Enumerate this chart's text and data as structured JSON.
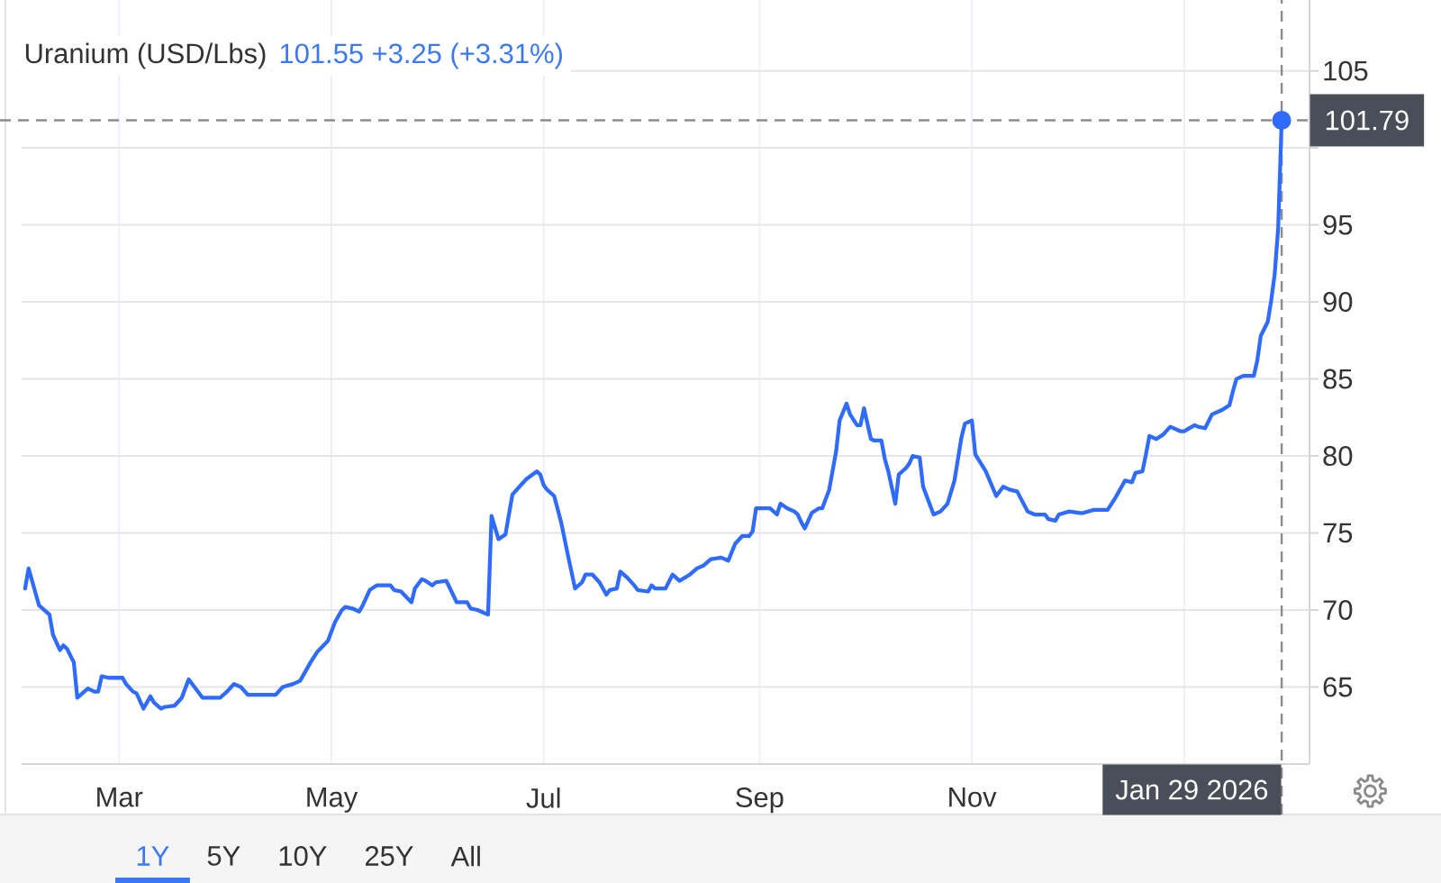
{
  "chart_data": {
    "type": "line",
    "title": "Uranium (USD/Lbs)",
    "subtitle": "101.55 +3.25 (+3.31%)",
    "xlim": [
      "2025-02-01",
      "2026-02-06"
    ],
    "xticks": [
      {
        "value": "2025-03-01",
        "label": "Mar"
      },
      {
        "value": "2025-05-01",
        "label": "May"
      },
      {
        "value": "2025-07-01",
        "label": "Jul"
      },
      {
        "value": "2025-09-01",
        "label": "Sep"
      },
      {
        "value": "2025-11-01",
        "label": "Nov"
      },
      {
        "value": "2026-01-01",
        "label": null
      }
    ],
    "ylim": [
      60,
      109.6
    ],
    "yticks": [
      65,
      70,
      75,
      80,
      85,
      90,
      95,
      {
        "value": 100,
        "label": null
      },
      105
    ],
    "grid": true,
    "series": [
      {
        "color": "#2f6bff",
        "x": [
          "2025-02-02",
          "2025-02-03",
          "2025-02-05",
          "2025-02-06",
          "2025-02-09",
          "2025-02-10",
          "2025-02-12",
          "2025-02-13",
          "2025-02-14",
          "2025-02-16",
          "2025-02-17",
          "2025-02-19",
          "2025-02-20",
          "2025-02-22",
          "2025-02-23",
          "2025-02-24",
          "2025-02-26",
          "2025-03-02",
          "2025-03-03",
          "2025-03-05",
          "2025-03-06",
          "2025-03-08",
          "2025-03-10",
          "2025-03-11",
          "2025-03-13",
          "2025-03-14",
          "2025-03-17",
          "2025-03-19",
          "2025-03-21",
          "2025-03-23",
          "2025-03-25",
          "2025-03-30",
          "2025-04-01",
          "2025-04-03",
          "2025-04-05",
          "2025-04-07",
          "2025-04-15",
          "2025-04-17",
          "2025-04-20",
          "2025-04-22",
          "2025-04-23",
          "2025-04-25",
          "2025-04-27",
          "2025-04-30",
          "2025-05-02",
          "2025-05-04",
          "2025-05-05",
          "2025-05-07",
          "2025-05-09",
          "2025-05-10",
          "2025-05-12",
          "2025-05-14",
          "2025-05-18",
          "2025-05-19",
          "2025-05-21",
          "2025-05-24",
          "2025-05-25",
          "2025-05-27",
          "2025-05-28",
          "2025-05-30",
          "2025-05-31",
          "2025-06-03",
          "2025-06-06",
          "2025-06-09",
          "2025-06-10",
          "2025-06-12",
          "2025-06-14",
          "2025-06-15",
          "2025-06-16",
          "2025-06-18",
          "2025-06-20",
          "2025-06-21",
          "2025-06-22",
          "2025-06-24",
          "2025-06-26",
          "2025-06-29",
          "2025-06-30",
          "2025-07-01",
          "2025-07-02",
          "2025-07-04",
          "2025-07-06",
          "2025-07-08",
          "2025-07-10",
          "2025-07-12",
          "2025-07-13",
          "2025-07-15",
          "2025-07-17",
          "2025-07-19",
          "2025-07-20",
          "2025-07-22",
          "2025-07-23",
          "2025-07-25",
          "2025-07-27",
          "2025-07-28",
          "2025-07-31",
          "2025-08-01",
          "2025-08-02",
          "2025-08-05",
          "2025-08-07",
          "2025-08-09",
          "2025-08-12",
          "2025-08-14",
          "2025-08-16",
          "2025-08-18",
          "2025-08-21",
          "2025-08-23",
          "2025-08-25",
          "2025-08-27",
          "2025-08-29",
          "2025-08-30",
          "2025-08-31",
          "2025-09-04",
          "2025-09-06",
          "2025-09-07",
          "2025-09-09",
          "2025-09-11",
          "2025-09-12",
          "2025-09-13",
          "2025-09-14",
          "2025-09-16",
          "2025-09-18",
          "2025-09-19",
          "2025-09-21",
          "2025-09-23",
          "2025-09-24",
          "2025-09-26",
          "2025-09-27",
          "2025-09-29",
          "2025-09-30",
          "2025-10-01",
          "2025-10-03",
          "2025-10-04",
          "2025-10-06",
          "2025-10-07",
          "2025-10-08",
          "2025-10-10",
          "2025-10-11",
          "2025-10-13",
          "2025-10-14",
          "2025-10-15",
          "2025-10-17",
          "2025-10-18",
          "2025-10-20",
          "2025-10-21",
          "2025-10-23",
          "2025-10-25",
          "2025-10-27",
          "2025-10-29",
          "2025-10-30",
          "2025-11-01",
          "2025-11-02",
          "2025-11-05",
          "2025-11-08",
          "2025-11-10",
          "2025-11-12",
          "2025-11-14",
          "2025-11-17",
          "2025-11-19",
          "2025-11-20",
          "2025-11-22",
          "2025-11-23",
          "2025-11-25",
          "2025-11-26",
          "2025-11-29",
          "2025-12-02",
          "2025-12-03",
          "2025-12-06",
          "2025-12-10",
          "2025-12-12",
          "2025-12-15",
          "2025-12-17",
          "2025-12-18",
          "2025-12-20",
          "2025-12-21",
          "2025-12-22",
          "2025-12-24",
          "2025-12-26",
          "2025-12-28",
          "2025-12-31",
          "2026-01-01",
          "2026-01-04",
          "2026-01-05",
          "2026-01-07",
          "2026-01-09",
          "2026-01-12",
          "2026-01-14",
          "2026-01-15",
          "2026-01-16",
          "2026-01-18",
          "2026-01-21",
          "2026-01-22",
          "2026-01-23",
          "2026-01-25",
          "2026-01-26",
          "2026-01-27",
          "2026-01-28",
          "2026-01-29"
        ],
        "values": [
          71.4,
          72.7,
          71.1,
          70.3,
          69.7,
          68.4,
          67.4,
          67.7,
          67.5,
          66.6,
          64.3,
          64.7,
          64.9,
          64.7,
          64.7,
          65.7,
          65.6,
          65.6,
          65.2,
          64.7,
          64.6,
          63.6,
          64.4,
          64.0,
          63.6,
          63.7,
          63.8,
          64.3,
          65.5,
          64.9,
          64.3,
          64.3,
          64.7,
          65.2,
          65.0,
          64.5,
          64.5,
          65.0,
          65.2,
          65.4,
          65.8,
          66.6,
          67.3,
          68.0,
          69.2,
          70.0,
          70.2,
          70.1,
          69.9,
          70.3,
          71.3,
          71.6,
          71.6,
          71.3,
          71.2,
          70.5,
          71.4,
          72.0,
          71.9,
          71.6,
          71.8,
          71.9,
          70.5,
          70.5,
          70.1,
          70.0,
          69.8,
          69.7,
          76.1,
          74.6,
          74.9,
          76.2,
          77.5,
          78.0,
          78.5,
          79.0,
          78.8,
          78.1,
          77.8,
          77.4,
          75.7,
          73.5,
          71.4,
          71.8,
          72.3,
          72.3,
          71.8,
          71.0,
          71.3,
          71.4,
          72.5,
          72.1,
          71.6,
          71.3,
          71.2,
          71.6,
          71.4,
          71.4,
          72.3,
          71.9,
          72.3,
          72.7,
          72.9,
          73.3,
          73.4,
          73.2,
          74.3,
          74.8,
          74.8,
          75.1,
          76.6,
          76.6,
          76.2,
          76.9,
          76.6,
          76.4,
          76.2,
          75.7,
          75.3,
          76.3,
          76.6,
          76.6,
          77.8,
          80.3,
          82.3,
          83.4,
          82.7,
          82.0,
          82.0,
          83.1,
          81.1,
          81.0,
          81.0,
          79.8,
          79.0,
          76.9,
          78.8,
          79.2,
          79.5,
          80.0,
          79.9,
          78.0,
          76.8,
          76.2,
          76.4,
          76.9,
          78.4,
          81.2,
          82.1,
          82.3,
          80.1,
          79.0,
          77.4,
          78.0,
          77.8,
          77.7,
          76.4,
          76.2,
          76.2,
          76.2,
          75.9,
          75.8,
          76.2,
          76.4,
          76.3,
          76.3,
          76.5,
          76.5,
          77.2,
          78.4,
          78.3,
          78.9,
          79.0,
          80.1,
          81.3,
          81.1,
          81.4,
          81.9,
          81.6,
          81.6,
          82.0,
          81.9,
          81.8,
          82.7,
          83.0,
          83.3,
          84.2,
          85.0,
          85.2,
          85.2,
          86.2,
          87.8,
          88.7,
          90.1,
          91.8,
          94.8,
          101.79
        ]
      },
      {
        "type": "scatter",
        "color": "#2f6bff",
        "x": [
          "2026-01-29"
        ],
        "values": [
          101.79
        ]
      }
    ],
    "ref_lines": [
      {
        "axis": "x",
        "value": "2026-01-29",
        "label": "Jan 29 2026",
        "color": "#8c8c8c",
        "line_style": "dashed"
      },
      {
        "axis": "y",
        "value": 101.79,
        "label": "101.79",
        "color": "#8c8c8c",
        "line_style": "dashed"
      }
    ],
    "annotations": [
      "1Y",
      "5Y",
      "10Y",
      "25Y",
      "All"
    ]
  }
}
